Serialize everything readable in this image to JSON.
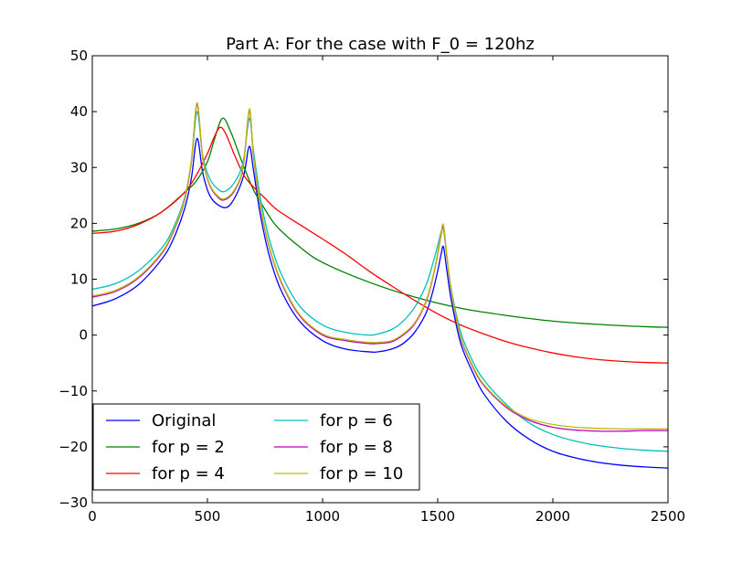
{
  "chart_data": {
    "type": "line",
    "title": "Part A: For the case with F_0 = 120hz",
    "xlabel": "",
    "ylabel": "",
    "xlim": [
      0,
      2500
    ],
    "ylim": [
      -30,
      50
    ],
    "xticks": [
      0,
      500,
      1000,
      1500,
      2000,
      2500
    ],
    "yticks": [
      -30,
      -20,
      -10,
      0,
      10,
      20,
      30,
      40,
      50
    ],
    "grid": false,
    "legend": {
      "position": "lower-left",
      "columns": 2
    },
    "series": [
      {
        "name": "Original",
        "color": "#0000ff",
        "x": [
          0,
          100,
          200,
          300,
          350,
          400,
          430,
          455,
          480,
          510,
          550,
          590,
          630,
          660,
          682,
          700,
          730,
          770,
          820,
          900,
          1000,
          1100,
          1200,
          1240,
          1300,
          1350,
          1400,
          1450,
          1480,
          1500,
          1515,
          1525,
          1540,
          1560,
          1600,
          1650,
          1700,
          1800,
          1900,
          2000,
          2100,
          2200,
          2300,
          2400,
          2500
        ],
        "y": [
          5.2,
          6.5,
          9.0,
          13.5,
          17.0,
          22.5,
          28.0,
          35.2,
          29.0,
          25.0,
          23.2,
          23.0,
          25.5,
          29.0,
          33.8,
          29.5,
          21.5,
          14.0,
          8.0,
          2.5,
          -1.0,
          -2.5,
          -3.0,
          -3.0,
          -2.5,
          -1.5,
          0.5,
          4.0,
          8.0,
          11.5,
          14.5,
          15.8,
          11.5,
          6.0,
          -1.5,
          -6.5,
          -10.5,
          -15.5,
          -18.7,
          -20.8,
          -22.0,
          -22.8,
          -23.3,
          -23.6,
          -23.8
        ]
      },
      {
        "name": "for p = 2",
        "color": "#008000",
        "x": [
          0,
          100,
          200,
          300,
          400,
          450,
          500,
          530,
          565,
          600,
          650,
          700,
          750,
          800,
          900,
          1000,
          1200,
          1400,
          1600,
          1800,
          2000,
          2200,
          2400,
          2500
        ],
        "y": [
          18.6,
          19.0,
          20.0,
          22.0,
          25.5,
          27.5,
          31.0,
          35.0,
          38.8,
          36.5,
          31.0,
          26.0,
          22.5,
          19.5,
          15.8,
          13.0,
          9.5,
          6.8,
          4.8,
          3.5,
          2.5,
          1.9,
          1.5,
          1.4
        ]
      },
      {
        "name": "for p = 4",
        "color": "#ff0000",
        "x": [
          0,
          100,
          200,
          300,
          400,
          450,
          500,
          530,
          555,
          580,
          620,
          660,
          700,
          750,
          800,
          900,
          1000,
          1100,
          1200,
          1300,
          1400,
          1500,
          1600,
          1700,
          1800,
          1900,
          2000,
          2100,
          2200,
          2300,
          2400,
          2500
        ],
        "y": [
          18.2,
          18.6,
          19.8,
          22.0,
          25.5,
          28.5,
          32.5,
          35.5,
          37.2,
          36.0,
          32.0,
          28.5,
          26.5,
          24.5,
          22.5,
          19.8,
          17.2,
          14.5,
          11.5,
          8.8,
          6.2,
          3.8,
          1.8,
          0.2,
          -1.2,
          -2.3,
          -3.2,
          -3.9,
          -4.4,
          -4.7,
          -4.9,
          -5.0
        ]
      },
      {
        "name": "for p = 6",
        "color": "#00bfbf",
        "x": [
          0,
          100,
          200,
          300,
          350,
          400,
          430,
          455,
          480,
          510,
          550,
          580,
          620,
          655,
          682,
          700,
          730,
          770,
          820,
          900,
          1000,
          1100,
          1200,
          1240,
          1300,
          1350,
          1400,
          1450,
          1480,
          1500,
          1515,
          1525,
          1540,
          1560,
          1600,
          1650,
          1700,
          1800,
          1900,
          2000,
          2100,
          2200,
          2300,
          2400,
          2500
        ],
        "y": [
          8.2,
          9.2,
          11.5,
          15.5,
          19.0,
          24.5,
          31.0,
          40.0,
          32.0,
          28.0,
          26.0,
          25.8,
          27.5,
          31.0,
          38.8,
          33.0,
          24.5,
          17.0,
          11.0,
          5.2,
          1.8,
          0.5,
          0.0,
          0.2,
          1.0,
          2.5,
          5.0,
          9.0,
          13.0,
          16.0,
          18.5,
          19.0,
          14.0,
          8.0,
          0.5,
          -4.5,
          -8.0,
          -12.5,
          -15.8,
          -17.8,
          -19.0,
          -19.8,
          -20.3,
          -20.6,
          -20.8
        ]
      },
      {
        "name": "for p = 8",
        "color": "#bf00bf",
        "x": [
          0,
          100,
          200,
          300,
          350,
          400,
          430,
          455,
          480,
          510,
          550,
          580,
          620,
          655,
          682,
          700,
          730,
          770,
          820,
          900,
          1000,
          1100,
          1200,
          1240,
          1300,
          1350,
          1400,
          1450,
          1480,
          1500,
          1515,
          1525,
          1540,
          1560,
          1600,
          1650,
          1700,
          1800,
          1900,
          2000,
          2100,
          2200,
          2300,
          2400,
          2500
        ],
        "y": [
          6.8,
          7.8,
          10.2,
          14.5,
          18.3,
          24.0,
          31.0,
          41.3,
          31.5,
          26.8,
          24.5,
          24.3,
          26.0,
          30.0,
          40.2,
          32.0,
          23.0,
          15.5,
          9.5,
          3.5,
          0.0,
          -1.0,
          -1.5,
          -1.5,
          -1.2,
          0.0,
          2.0,
          6.0,
          10.5,
          14.5,
          18.0,
          19.4,
          14.0,
          7.5,
          -0.5,
          -5.5,
          -9.0,
          -13.0,
          -15.3,
          -16.5,
          -17.0,
          -17.2,
          -17.2,
          -17.1,
          -17.1
        ]
      },
      {
        "name": "for p = 10",
        "color": "#bfbf00",
        "x": [
          0,
          100,
          200,
          300,
          350,
          400,
          430,
          455,
          480,
          510,
          550,
          580,
          620,
          655,
          682,
          700,
          730,
          770,
          820,
          900,
          1000,
          1100,
          1200,
          1240,
          1300,
          1350,
          1400,
          1450,
          1480,
          1500,
          1515,
          1525,
          1540,
          1560,
          1600,
          1650,
          1700,
          1800,
          1900,
          2000,
          2100,
          2200,
          2300,
          2400,
          2500
        ],
        "y": [
          7.0,
          8.0,
          10.4,
          14.7,
          18.5,
          24.2,
          31.2,
          41.6,
          31.7,
          27.0,
          24.7,
          24.5,
          26.2,
          30.2,
          40.5,
          32.2,
          23.2,
          15.7,
          9.7,
          3.7,
          0.2,
          -0.8,
          -1.3,
          -1.3,
          -1.0,
          0.2,
          2.2,
          6.2,
          10.7,
          14.7,
          18.3,
          19.7,
          14.2,
          7.7,
          -0.3,
          -5.3,
          -8.8,
          -12.8,
          -15.0,
          -16.0,
          -16.5,
          -16.7,
          -16.8,
          -16.8,
          -16.8
        ]
      }
    ]
  }
}
